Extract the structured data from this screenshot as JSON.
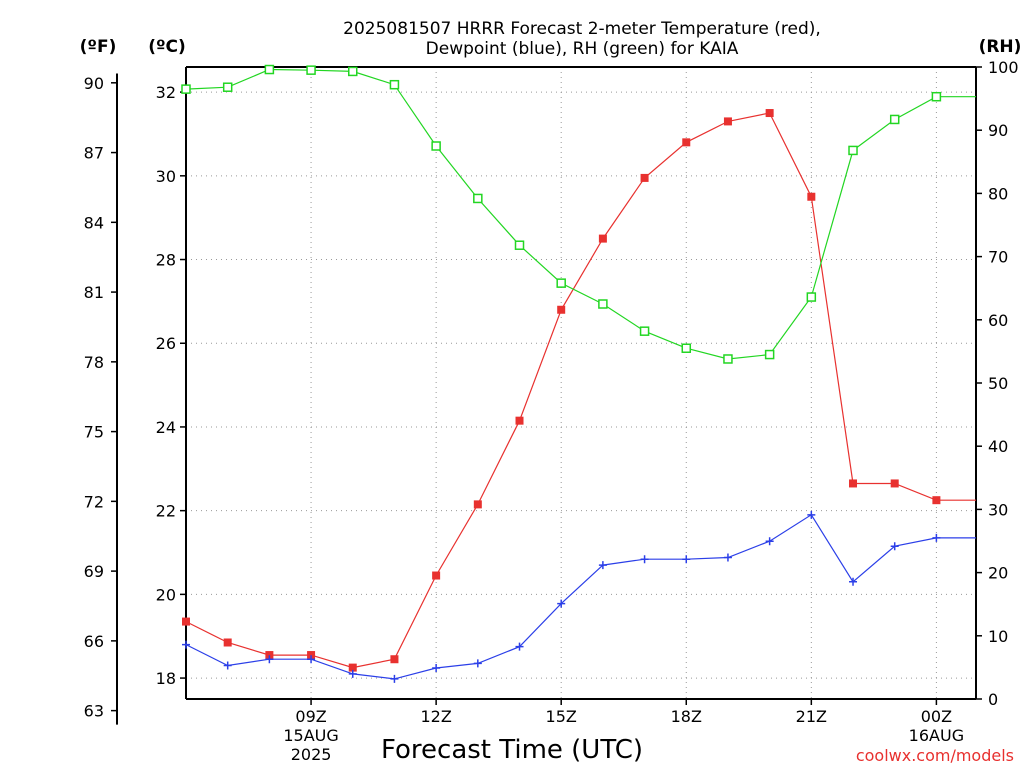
{
  "chart_data": {
    "type": "line",
    "title_line1": "2025081507 HRRR Forecast 2-meter Temperature (red),",
    "title_line2": "Dewpoint (blue), RH (green) for KAIA",
    "xlabel": "Forecast Time (UTC)",
    "credit": "coolwx.com/models",
    "units": {
      "left_outer": "(ºF)",
      "left_inner": "(ºC)",
      "right": "(RH)"
    },
    "x_hours": [
      6,
      7,
      8,
      9,
      10,
      11,
      12,
      13,
      14,
      15,
      16,
      17,
      18,
      19,
      20,
      21,
      22,
      23,
      24,
      25
    ],
    "x_ticks": [
      {
        "hour": 9,
        "label": "09Z",
        "label2": "15AUG",
        "label3": "2025"
      },
      {
        "hour": 12,
        "label": "12Z",
        "label2": "",
        "label3": ""
      },
      {
        "hour": 15,
        "label": "15Z",
        "label2": "",
        "label3": ""
      },
      {
        "hour": 18,
        "label": "18Z",
        "label2": "",
        "label3": ""
      },
      {
        "hour": 21,
        "label": "21Z",
        "label2": "",
        "label3": ""
      },
      {
        "hour": 24,
        "label": "00Z",
        "label2": "16AUG",
        "label3": ""
      }
    ],
    "x_range": [
      6,
      24.95
    ],
    "celsius_range": [
      17.5,
      32.6
    ],
    "celsius_ticks": [
      18,
      20,
      22,
      24,
      26,
      28,
      30,
      32
    ],
    "fahrenheit_ticks": [
      63,
      66,
      69,
      72,
      75,
      78,
      81,
      84,
      87,
      90
    ],
    "rh_range": [
      0,
      100
    ],
    "rh_ticks": [
      0,
      10,
      20,
      30,
      40,
      50,
      60,
      70,
      80,
      90,
      100
    ],
    "series": [
      {
        "name": "Temperature",
        "color": "#e8312f",
        "marker": "filled-square",
        "axis": "celsius",
        "values": [
          19.35,
          18.85,
          18.55,
          18.55,
          18.25,
          18.45,
          20.45,
          22.15,
          24.15,
          26.8,
          28.5,
          29.95,
          30.8,
          31.3,
          31.5,
          29.5,
          22.65,
          22.65,
          22.25,
          22.25
        ]
      },
      {
        "name": "Dewpoint",
        "color": "#2b3fe8",
        "marker": "plus",
        "axis": "celsius",
        "values": [
          18.8,
          18.3,
          18.45,
          18.45,
          18.1,
          17.98,
          18.24,
          18.35,
          18.75,
          19.78,
          20.7,
          20.84,
          20.84,
          20.88,
          21.27,
          21.9,
          20.3,
          21.15,
          21.35,
          21.35
        ]
      },
      {
        "name": "RH",
        "color": "#22d622",
        "marker": "open-square",
        "axis": "rh",
        "values": [
          96.5,
          96.8,
          99.6,
          99.5,
          99.3,
          97.2,
          87.5,
          79.2,
          71.8,
          65.8,
          62.5,
          58.2,
          55.5,
          53.8,
          54.5,
          63.6,
          86.8,
          91.7,
          95.3,
          95.3
        ]
      }
    ],
    "grid": true,
    "legend": "none"
  }
}
